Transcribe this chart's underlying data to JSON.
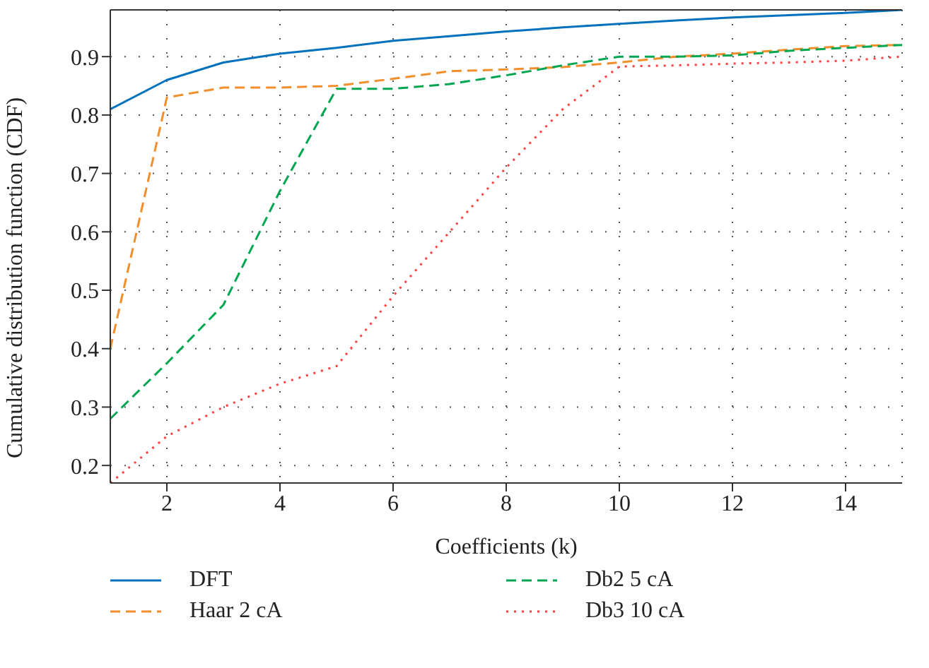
{
  "chart_data": {
    "type": "line",
    "xlabel": "Coefficients (k)",
    "ylabel": "Cumulative distribution function (CDF)",
    "x": [
      1,
      2,
      3,
      4,
      5,
      6,
      7,
      8,
      9,
      10,
      11,
      12,
      13,
      14,
      15
    ],
    "series": [
      {
        "name": "DFT",
        "color": "#0072bd",
        "line_style": "solid",
        "values": [
          0.81,
          0.86,
          0.89,
          0.905,
          0.915,
          0.927,
          0.935,
          0.943,
          0.95,
          0.956,
          0.962,
          0.967,
          0.971,
          0.975,
          0.98
        ]
      },
      {
        "name": "Haar 2 cA",
        "color": "#f28e2b",
        "line_style": "dashed",
        "values": [
          0.4,
          0.83,
          0.847,
          0.847,
          0.85,
          0.862,
          0.875,
          0.878,
          0.882,
          0.89,
          0.9,
          0.905,
          0.912,
          0.918,
          0.92
        ]
      },
      {
        "name": "Db2 5 cA",
        "color": "#00a650",
        "line_style": "dashed",
        "values": [
          0.28,
          0.375,
          0.475,
          0.67,
          0.845,
          0.845,
          0.853,
          0.868,
          0.885,
          0.9,
          0.9,
          0.902,
          0.91,
          0.915,
          0.92
        ]
      },
      {
        "name": "Db3 10 cA",
        "color": "#ff4040",
        "line_style": "dotted",
        "values": [
          0.17,
          0.25,
          0.3,
          0.34,
          0.37,
          0.49,
          0.6,
          0.71,
          0.81,
          0.883,
          0.885,
          0.888,
          0.89,
          0.893,
          0.9
        ]
      }
    ],
    "xlim": [
      1,
      15
    ],
    "xticks": [
      2,
      4,
      6,
      8,
      10,
      12,
      14
    ],
    "ylim": [
      0.17,
      0.98
    ],
    "yticks": [
      0.2,
      0.3,
      0.4,
      0.5,
      0.6,
      0.7,
      0.8,
      0.9
    ],
    "grid": true,
    "legend": "bottom",
    "marker": "none"
  }
}
